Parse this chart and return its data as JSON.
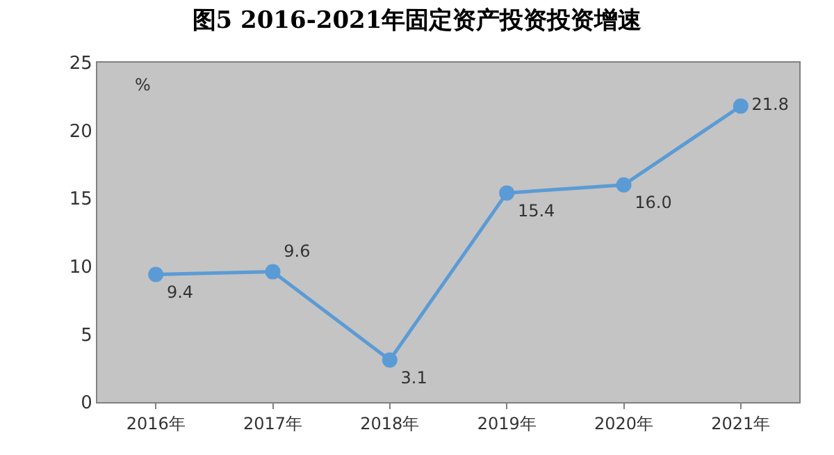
{
  "chart_data": {
    "type": "line",
    "title": "图5 2016-2021年固定资产投资投资增速",
    "categories": [
      "2016年",
      "2017年",
      "2018年",
      "2019年",
      "2020年",
      "2021年"
    ],
    "series": [
      {
        "color": "#5b9bd5",
        "values": [
          9.4,
          9.6,
          3.1,
          15.4,
          16.0,
          21.8
        ],
        "value_labels": [
          "9.4",
          "9.6",
          "3.1",
          "15.4",
          "16.0",
          "21.8"
        ]
      }
    ],
    "ylim": [
      0,
      25
    ],
    "yticks": [
      0,
      5,
      10,
      15,
      20,
      25
    ],
    "grid": false,
    "marker": "circle",
    "line_style": "solid",
    "annotations": [
      "%"
    ]
  }
}
